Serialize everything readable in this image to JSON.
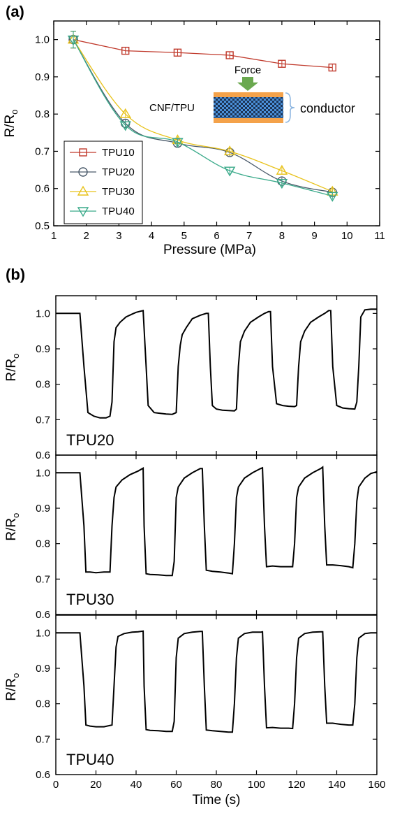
{
  "panel_a": {
    "label": "(a)",
    "inset": {
      "force_label": "Force",
      "material_label": "CNF/TPU",
      "conductor_label": "conductor",
      "colors": {
        "force_text": "#8a9fd6",
        "arrow": "#6aa84f",
        "layer": "#f4a24a",
        "checker_dark": "#1d3557",
        "checker_light": "#4a90d9",
        "conductor_text": "#8b3a1a"
      }
    }
  },
  "panel_b": {
    "label": "(b)"
  },
  "chart_data": [
    {
      "type": "line",
      "panel": "a",
      "xlabel": "Pressure (MPa)",
      "ylabel": "R/R₀",
      "xlim": [
        1,
        11
      ],
      "ylim": [
        0.5,
        1.05
      ],
      "x_ticks": [
        "1",
        "2",
        "3",
        "4",
        "5",
        "6",
        "7",
        "8",
        "9",
        "10",
        "11"
      ],
      "y_ticks": [
        "0.5",
        "0.6",
        "0.7",
        "0.8",
        "0.9",
        "1.0"
      ],
      "legend_position": "bottom-left",
      "series": [
        {
          "name": "TPU10",
          "color": "#c0392b",
          "marker": "square",
          "x": [
            1.6,
            3.2,
            4.8,
            6.4,
            8.0,
            9.55
          ],
          "y": [
            1.0,
            0.97,
            0.965,
            0.958,
            0.935,
            0.925
          ]
        },
        {
          "name": "TPU20",
          "color": "#4a5a6a",
          "marker": "circle",
          "x": [
            1.6,
            3.2,
            4.8,
            6.4,
            8.0,
            9.55
          ],
          "y": [
            1.0,
            0.775,
            0.722,
            0.697,
            0.62,
            0.59
          ]
        },
        {
          "name": "TPU30",
          "color": "#e8c21a",
          "marker": "triangle-up",
          "x": [
            1.6,
            3.2,
            4.8,
            6.4,
            8.0,
            9.55
          ],
          "y": [
            1.0,
            0.8,
            0.73,
            0.7,
            0.648,
            0.592
          ]
        },
        {
          "name": "TPU40",
          "color": "#3aaa8a",
          "marker": "triangle-down",
          "x": [
            1.6,
            3.2,
            4.8,
            6.4,
            8.0,
            9.55
          ],
          "y": [
            1.0,
            0.77,
            0.725,
            0.648,
            0.615,
            0.58
          ]
        }
      ]
    },
    {
      "type": "line",
      "panel": "b",
      "label": "TPU20",
      "label_color": "#4a86c8",
      "ylabel": "R/R₀",
      "xlim": [
        0,
        160
      ],
      "ylim": [
        0.6,
        1.05
      ],
      "y_ticks": [
        "0.6",
        "0.7",
        "0.8",
        "0.9",
        "1.0"
      ],
      "x": [
        0,
        12,
        14,
        16,
        19,
        22,
        25,
        27,
        28,
        29,
        30,
        32,
        35,
        38,
        40,
        42,
        43.5,
        45,
        46,
        49,
        52,
        55,
        58,
        60,
        61,
        62,
        63,
        65,
        68,
        72,
        75,
        76,
        77,
        78,
        80,
        83,
        86,
        89,
        90,
        91,
        92,
        94,
        97,
        101,
        104,
        106,
        107,
        108,
        110,
        113,
        116,
        119,
        120,
        121,
        122,
        124,
        127,
        131,
        134,
        136,
        137,
        138,
        140,
        143,
        146,
        149,
        150,
        151,
        152,
        154,
        157,
        160
      ],
      "y": [
        1.0,
        1.0,
        0.85,
        0.72,
        0.71,
        0.705,
        0.705,
        0.71,
        0.75,
        0.92,
        0.96,
        0.975,
        0.99,
        0.998,
        1.003,
        1.006,
        1.008,
        0.85,
        0.74,
        0.72,
        0.718,
        0.716,
        0.715,
        0.72,
        0.85,
        0.91,
        0.94,
        0.96,
        0.985,
        0.995,
        1.0,
        1.0,
        0.85,
        0.74,
        0.73,
        0.727,
        0.726,
        0.725,
        0.73,
        0.85,
        0.92,
        0.95,
        0.975,
        0.99,
        1.0,
        1.005,
        1.005,
        0.85,
        0.745,
        0.74,
        0.738,
        0.737,
        0.74,
        0.85,
        0.92,
        0.95,
        0.975,
        0.99,
        1.0,
        1.008,
        1.008,
        0.85,
        0.74,
        0.733,
        0.731,
        0.73,
        0.75,
        0.85,
        0.99,
        1.01,
        1.012,
        1.012
      ]
    },
    {
      "type": "line",
      "panel": "b",
      "label": "TPU30",
      "label_color": "#4a86c8",
      "ylabel": "R/R₀",
      "xlim": [
        0,
        160
      ],
      "ylim": [
        0.6,
        1.05
      ],
      "y_ticks": [
        "0.6",
        "0.7",
        "0.8",
        "0.9",
        "1.0"
      ],
      "x": [
        0,
        12,
        14,
        15,
        17,
        20,
        24,
        27,
        28,
        29,
        30,
        33,
        37,
        41,
        43.5,
        44,
        45,
        47,
        51,
        55,
        58,
        59,
        60,
        61,
        64,
        68,
        72,
        73,
        74,
        75,
        78,
        82,
        86,
        88,
        89,
        90,
        91,
        94,
        98,
        102,
        103,
        104,
        105,
        108,
        112,
        116,
        118,
        119,
        120,
        121,
        124,
        128,
        132,
        133,
        134,
        135,
        138,
        142,
        146,
        148,
        149,
        150,
        151,
        154,
        157,
        160
      ],
      "y": [
        1.0,
        1.0,
        0.85,
        0.72,
        0.72,
        0.718,
        0.72,
        0.72,
        0.85,
        0.93,
        0.96,
        0.98,
        0.995,
        1.005,
        1.013,
        0.85,
        0.715,
        0.713,
        0.712,
        0.71,
        0.71,
        0.75,
        0.93,
        0.96,
        0.985,
        1.0,
        1.012,
        1.012,
        0.85,
        0.725,
        0.722,
        0.72,
        0.717,
        0.715,
        0.8,
        0.93,
        0.96,
        0.985,
        1.0,
        1.012,
        1.014,
        0.85,
        0.735,
        0.737,
        0.735,
        0.735,
        0.735,
        0.8,
        0.93,
        0.96,
        0.985,
        1.0,
        1.012,
        1.016,
        0.85,
        0.74,
        0.74,
        0.738,
        0.735,
        0.732,
        0.8,
        0.92,
        0.96,
        0.985,
        0.998,
        1.003
      ]
    },
    {
      "type": "line",
      "panel": "b",
      "label": "TPU40",
      "label_color": "#4a86c8",
      "ylabel": "R/R₀",
      "xlabel": "Time (s)",
      "xlim": [
        0,
        160
      ],
      "ylim": [
        0.6,
        1.05
      ],
      "y_ticks": [
        "0.6",
        "0.7",
        "0.8",
        "0.9",
        "1.0"
      ],
      "x_ticks": [
        "0",
        "20",
        "40",
        "60",
        "80",
        "100",
        "120",
        "140",
        "160"
      ],
      "x": [
        0,
        12,
        14,
        15,
        17,
        20,
        24,
        28,
        29,
        30,
        31,
        34,
        38,
        41,
        43.5,
        44,
        45,
        47,
        51,
        55,
        58,
        59,
        60,
        61,
        64,
        68,
        72,
        73,
        74,
        75,
        78,
        82,
        86,
        88,
        89,
        90,
        91,
        94,
        98,
        102,
        103,
        104,
        105,
        108,
        112,
        116,
        118,
        119,
        120,
        121,
        124,
        128,
        132,
        133,
        134,
        135,
        138,
        142,
        146,
        148,
        149,
        150,
        151,
        154,
        157,
        160
      ],
      "y": [
        1.0,
        1.0,
        0.85,
        0.74,
        0.737,
        0.735,
        0.735,
        0.74,
        0.85,
        0.96,
        0.99,
        0.998,
        1.002,
        1.003,
        1.005,
        0.85,
        0.727,
        0.725,
        0.724,
        0.722,
        0.722,
        0.75,
        0.93,
        0.985,
        0.998,
        1.002,
        1.004,
        1.004,
        0.85,
        0.726,
        0.724,
        0.722,
        0.72,
        0.72,
        0.8,
        0.93,
        0.985,
        0.998,
        1.002,
        1.002,
        1.003,
        0.85,
        0.732,
        0.733,
        0.731,
        0.731,
        0.73,
        0.8,
        0.93,
        0.985,
        0.998,
        1.002,
        1.003,
        1.003,
        0.85,
        0.745,
        0.745,
        0.742,
        0.74,
        0.74,
        0.8,
        0.93,
        0.985,
        0.998,
        1.0,
        1.0
      ]
    }
  ]
}
